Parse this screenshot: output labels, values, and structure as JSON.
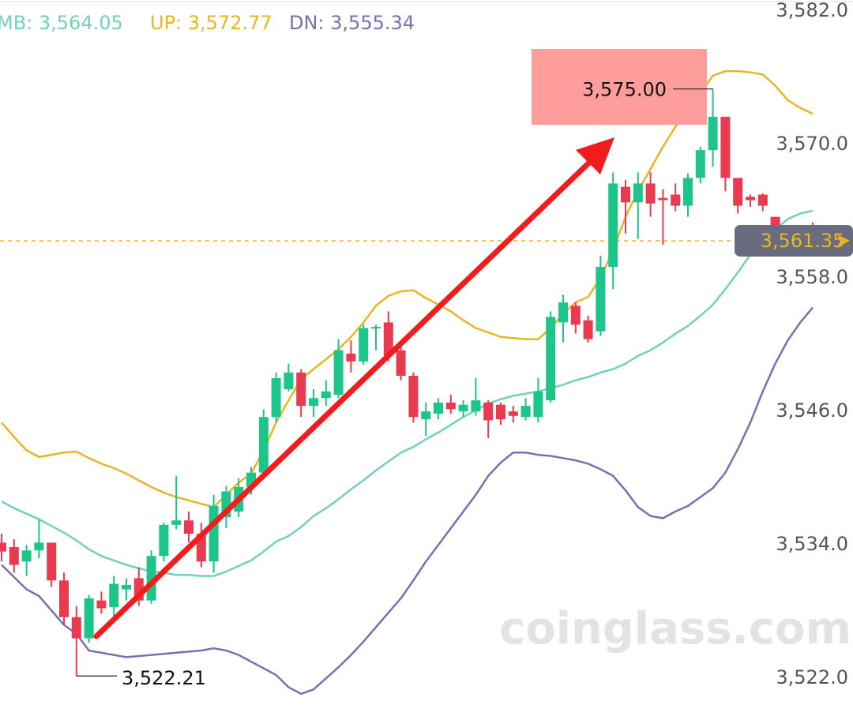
{
  "chart_data": {
    "type": "candlestick",
    "up_color": "#1dc58a",
    "down_color": "#ea3a4f",
    "open": [
      3534.2,
      3533.8,
      3532.5,
      3533.5,
      3534.2,
      3530.8,
      3527.5,
      3525.6,
      3529.0,
      3528.4,
      3530.0,
      3531.0,
      3529.0,
      3533.0,
      3535.8,
      3536.2,
      3535.0,
      3532.5,
      3536.5,
      3537.0,
      3539.2,
      3540.5,
      3545.5,
      3548.0,
      3549.5,
      3546.5,
      3547.2,
      3547.5,
      3551.2,
      3550.5,
      3553.5,
      3554.0,
      3551.5,
      3549.2,
      3545.3,
      3545.8,
      3546.8,
      3546.0,
      3546.0,
      3546.8,
      3546.6,
      3546.0,
      3545.5,
      3545.5,
      3547.0,
      3554.0,
      3555.5,
      3554.2,
      3553.2,
      3559.0,
      3566.2,
      3564.8,
      3566.5,
      3565.2,
      3565.5,
      3564.5,
      3567.0,
      3569.5,
      3572.5,
      3567.0,
      3565.3,
      3565.5,
      3563.5,
      3562.0,
      3561.5,
      3562.4
    ],
    "high": [
      3535.0,
      3534.5,
      3534.0,
      3536.3,
      3534.2,
      3531.5,
      3528.5,
      3529.5,
      3529.8,
      3531.2,
      3531.0,
      3532.0,
      3533.5,
      3536.0,
      3540.2,
      3537.0,
      3536.0,
      3538.5,
      3539.3,
      3540.0,
      3541.0,
      3546.2,
      3549.5,
      3550.3,
      3549.8,
      3548.0,
      3548.8,
      3552.5,
      3552.4,
      3553.8,
      3553.8,
      3555.0,
      3551.8,
      3549.5,
      3546.8,
      3547.2,
      3547.5,
      3547.0,
      3549.0,
      3547.0,
      3546.8,
      3546.5,
      3547.2,
      3549.0,
      3555.0,
      3556.5,
      3555.8,
      3554.6,
      3560.0,
      3567.5,
      3566.8,
      3567.5,
      3567.5,
      3566.0,
      3566.5,
      3567.4,
      3569.8,
      3575.0,
      3572.5,
      3567.0,
      3565.5,
      3565.6,
      3563.5,
      3562.5,
      3562.6,
      3563.0
    ],
    "low": [
      3532.5,
      3531.5,
      3531.2,
      3532.8,
      3530.2,
      3526.8,
      3522.21,
      3525.2,
      3527.8,
      3527.5,
      3529.0,
      3528.5,
      3528.7,
      3532.5,
      3535.4,
      3534.2,
      3532.0,
      3531.5,
      3535.5,
      3536.5,
      3538.5,
      3540.0,
      3545.0,
      3547.8,
      3545.5,
      3545.5,
      3546.5,
      3547.2,
      3549.5,
      3550.2,
      3551.5,
      3550.5,
      3548.8,
      3545.0,
      3543.8,
      3545.3,
      3545.8,
      3545.5,
      3545.6,
      3543.6,
      3544.8,
      3545.0,
      3545.2,
      3545.0,
      3546.8,
      3552.2,
      3553.0,
      3552.2,
      3552.8,
      3557.0,
      3562.0,
      3561.5,
      3563.5,
      3561.0,
      3564.0,
      3563.5,
      3566.5,
      3568.0,
      3565.8,
      3563.8,
      3564.4,
      3564.0,
      3561.6,
      3561.0,
      3561.3,
      3561.0
    ],
    "close": [
      3533.4,
      3532.2,
      3533.5,
      3534.2,
      3530.8,
      3527.5,
      3525.6,
      3529.2,
      3528.3,
      3530.5,
      3530.4,
      3529.0,
      3533.0,
      3535.8,
      3536.2,
      3535.0,
      3532.5,
      3537.5,
      3538.8,
      3539.2,
      3540.5,
      3545.5,
      3549.0,
      3549.5,
      3546.5,
      3547.2,
      3547.8,
      3551.5,
      3550.5,
      3553.5,
      3553.6,
      3551.0,
      3549.2,
      3545.5,
      3546.0,
      3546.8,
      3546.2,
      3546.6,
      3547.0,
      3545.2,
      3545.3,
      3545.6,
      3546.5,
      3547.8,
      3554.5,
      3555.8,
      3553.8,
      3552.5,
      3559.0,
      3566.5,
      3564.8,
      3566.5,
      3564.7,
      3565.0,
      3564.5,
      3567.0,
      3569.5,
      3572.5,
      3567.0,
      3564.5,
      3565.0,
      3564.5,
      3562.0,
      3561.5,
      3562.0,
      3561.35
    ],
    "series": [
      {
        "name": "MB: 3,564.05",
        "color": "#72d1b6",
        "values": [
          3537.9,
          3537.3,
          3536.8,
          3536.3,
          3535.7,
          3535.1,
          3534.4,
          3533.6,
          3533.0,
          3532.6,
          3532.2,
          3531.9,
          3531.6,
          3531.5,
          3531.3,
          3531.3,
          3531.2,
          3531.2,
          3531.6,
          3532.1,
          3532.6,
          3533.4,
          3534.3,
          3534.8,
          3535.6,
          3536.6,
          3537.3,
          3538.1,
          3539.0,
          3539.8,
          3540.7,
          3541.5,
          3542.3,
          3542.8,
          3543.5,
          3544.1,
          3544.8,
          3545.5,
          3546.1,
          3546.7,
          3547.1,
          3547.4,
          3547.6,
          3547.8,
          3548.1,
          3548.4,
          3548.8,
          3549.1,
          3549.5,
          3549.8,
          3550.3,
          3551.0,
          3551.5,
          3552.2,
          3553.0,
          3553.7,
          3554.6,
          3555.6,
          3557.0,
          3558.5,
          3560.1,
          3561.2,
          3562.4,
          3563.3,
          3563.8,
          3564.05
        ]
      },
      {
        "name": "UP: 3,572.77",
        "color": "#e9b522",
        "values": [
          3545.0,
          3543.7,
          3542.5,
          3541.9,
          3542.1,
          3542.3,
          3542.4,
          3541.8,
          3541.3,
          3540.9,
          3540.4,
          3539.8,
          3539.2,
          3538.7,
          3538.3,
          3538.0,
          3537.7,
          3537.4,
          3538.5,
          3539.6,
          3540.4,
          3542.5,
          3545.0,
          3547.0,
          3548.9,
          3549.8,
          3550.7,
          3551.6,
          3552.7,
          3554.0,
          3555.5,
          3556.4,
          3556.8,
          3556.9,
          3556.2,
          3555.6,
          3555.0,
          3554.2,
          3553.5,
          3553.1,
          3552.7,
          3552.6,
          3552.5,
          3552.5,
          3553.5,
          3554.8,
          3555.8,
          3556.3,
          3558.0,
          3560.5,
          3563.5,
          3565.8,
          3567.8,
          3569.8,
          3571.6,
          3573.2,
          3574.6,
          3576.2,
          3576.6,
          3576.6,
          3576.5,
          3576.3,
          3575.3,
          3574.0,
          3573.3,
          3572.77
        ]
      },
      {
        "name": "DN: 3,555.34",
        "color": "#7b6eb2",
        "values": [
          3532.2,
          3531.1,
          3530.0,
          3529.4,
          3528.1,
          3526.8,
          3526.0,
          3524.5,
          3524.3,
          3524.1,
          3523.9,
          3524.0,
          3524.1,
          3524.2,
          3524.3,
          3524.4,
          3524.5,
          3524.7,
          3524.5,
          3524.1,
          3523.5,
          3522.9,
          3522.3,
          3521.2,
          3520.6,
          3521.0,
          3522.0,
          3523.0,
          3524.1,
          3525.3,
          3526.6,
          3527.9,
          3529.2,
          3530.8,
          3532.5,
          3534.0,
          3535.5,
          3537.0,
          3538.5,
          3540.2,
          3541.4,
          3542.3,
          3542.3,
          3542.1,
          3542.0,
          3541.8,
          3541.6,
          3541.3,
          3540.8,
          3540.2,
          3538.9,
          3537.4,
          3536.6,
          3536.4,
          3537.0,
          3537.5,
          3538.3,
          3539.1,
          3540.5,
          3542.6,
          3545.0,
          3547.8,
          3550.3,
          3552.4,
          3554.0,
          3555.34
        ]
      }
    ],
    "ylim": [
      3519.6,
      3583.0
    ],
    "yticks": [
      {
        "value": 3582.0,
        "label": "3,582.0"
      },
      {
        "value": 3570.0,
        "label": "3,570.0"
      },
      {
        "value": 3558.0,
        "label": "3,558.0"
      },
      {
        "value": 3546.0,
        "label": "3,546.0"
      },
      {
        "value": 3534.0,
        "label": "3,534.0"
      },
      {
        "value": 3522.0,
        "label": "3,522.0"
      }
    ],
    "high_marker": {
      "value": 3575.0,
      "label": "3,575.00"
    },
    "low_marker": {
      "value": 3522.21,
      "label": "3,522.21"
    },
    "last_price": {
      "value": 3561.35,
      "label": "3,561.35",
      "color": "#e9b522"
    },
    "watermark": "coinglass.com"
  }
}
